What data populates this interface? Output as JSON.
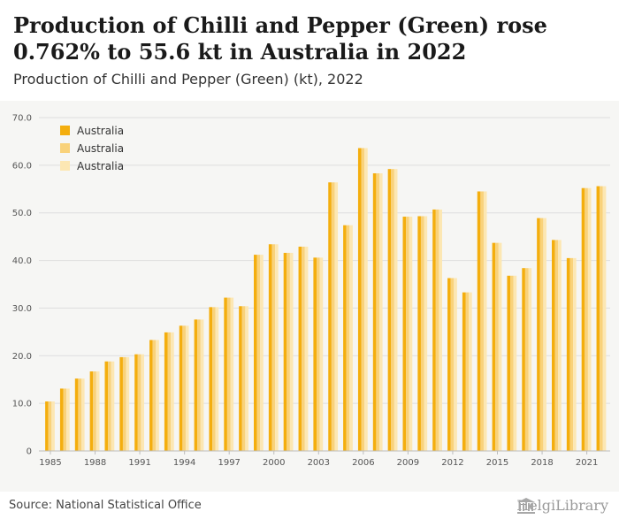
{
  "header": {
    "title": "Production of Chilli and Pepper (Green) rose 0.762% to 55.6 kt in Australia in 2022",
    "subtitle": "Production of Chilli and Pepper (Green) (kt), 2022"
  },
  "footer": {
    "source": "Source: National Statistical Office",
    "brand": "HelgiLibrary",
    "brand_icon": "library-building-icon"
  },
  "colors": {
    "series": [
      "#f4ae0e",
      "#f9d27a",
      "#fce7b3"
    ],
    "background": "#f6f6f4"
  },
  "chart_data": {
    "type": "bar",
    "xlabel": "",
    "ylabel": "",
    "ylim": [
      0,
      70
    ],
    "yticks": [
      "0",
      "10.0",
      "20.0",
      "30.0",
      "40.0",
      "50.0",
      "60.0",
      "70.0"
    ],
    "xtick_labels": [
      "1985",
      "1988",
      "1991",
      "1994",
      "1997",
      "2000",
      "2003",
      "2006",
      "2009",
      "2012",
      "2015",
      "2018",
      "2021"
    ],
    "grid": true,
    "legend_position": "top-left",
    "categories": [
      "1985",
      "1986",
      "1987",
      "1988",
      "1989",
      "1990",
      "1991",
      "1992",
      "1993",
      "1994",
      "1995",
      "1996",
      "1997",
      "1998",
      "1999",
      "2000",
      "2001",
      "2002",
      "2003",
      "2004",
      "2005",
      "2006",
      "2007",
      "2008",
      "2009",
      "2010",
      "2011",
      "2012",
      "2013",
      "2014",
      "2015",
      "2016",
      "2017",
      "2018",
      "2019",
      "2020",
      "2021",
      "2022"
    ],
    "series": [
      {
        "name": "Australia",
        "values": [
          10.4,
          13.1,
          15.2,
          16.7,
          18.8,
          19.7,
          20.3,
          23.3,
          24.9,
          26.3,
          27.6,
          30.2,
          32.2,
          30.4,
          41.2,
          43.4,
          41.6,
          42.9,
          40.6,
          56.4,
          47.4,
          63.6,
          58.3,
          59.2,
          49.2,
          49.3,
          50.7,
          36.3,
          33.3,
          54.5,
          43.7,
          36.8,
          38.4,
          48.9,
          44.3,
          40.5,
          55.2,
          55.6
        ]
      },
      {
        "name": "Australia",
        "values": [
          10.4,
          13.1,
          15.2,
          16.7,
          18.8,
          19.7,
          20.3,
          23.3,
          24.9,
          26.3,
          27.6,
          30.2,
          32.2,
          30.4,
          41.2,
          43.4,
          41.6,
          42.9,
          40.6,
          56.4,
          47.4,
          63.6,
          58.3,
          59.2,
          49.2,
          49.3,
          50.7,
          36.3,
          33.3,
          54.5,
          43.7,
          36.8,
          38.4,
          48.9,
          44.3,
          40.5,
          55.2,
          55.6
        ]
      },
      {
        "name": "Australia",
        "values": [
          10.4,
          13.1,
          15.2,
          16.7,
          18.8,
          19.7,
          20.3,
          23.3,
          24.9,
          26.3,
          27.6,
          30.2,
          32.2,
          30.4,
          41.2,
          43.4,
          41.6,
          42.9,
          40.6,
          56.4,
          47.4,
          63.6,
          58.3,
          59.2,
          49.2,
          49.3,
          50.7,
          36.3,
          33.3,
          54.5,
          43.7,
          36.8,
          38.4,
          48.9,
          44.3,
          40.5,
          55.2,
          55.6
        ]
      }
    ]
  }
}
